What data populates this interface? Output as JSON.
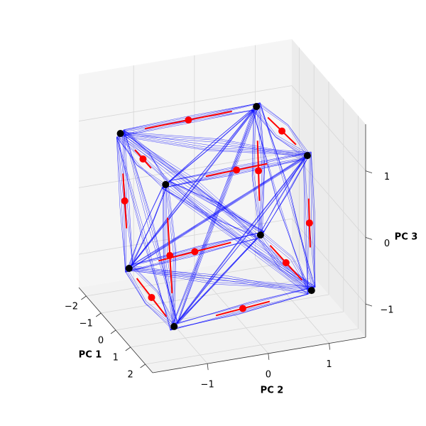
{
  "chart_data": {
    "type": "scatter3d",
    "xlabel": "PC 1",
    "ylabel": "PC 2",
    "zlabel": "PC 3",
    "xlim": [
      -2.5,
      2.5
    ],
    "ylim": [
      -1.9,
      1.6
    ],
    "zlim": [
      -1.5,
      1.7
    ],
    "xticks": [
      {
        "value": -2,
        "label": "−2"
      },
      {
        "value": -1,
        "label": "−1"
      },
      0,
      1,
      2
    ],
    "yticks": [
      {
        "value": -1,
        "label": "−1"
      },
      0,
      1
    ],
    "zticks": [
      {
        "value": -1,
        "label": "−1"
      },
      0,
      1
    ],
    "grid": true,
    "line_color": "#0000ff",
    "vertices": {
      "color": "#000000",
      "x": [
        -1.58,
        -0.98,
        1.15,
        0.33,
        -0.87,
        -0.91,
        0.73,
        0.86
      ],
      "y": [
        -1.44,
        0.65,
        0.97,
        -1.16,
        -1.47,
        0.7,
        1.14,
        -1.15
      ],
      "z": [
        0.98,
        1.22,
        0.98,
        0.66,
        -0.86,
        -0.7,
        -1.18,
        -1.34
      ]
    },
    "midpoints": {
      "color": "#ff0000",
      "x": [
        -1.28,
        0.085,
        0.74,
        -0.625,
        -0.89,
        -0.09,
        0.795,
        -0.005,
        -1.225,
        -0.945,
        0.94,
        0.595
      ],
      "y": [
        -0.395,
        0.81,
        -0.095,
        -1.3,
        -0.385,
        0.92,
        -0.005,
        -1.31,
        -1.455,
        0.675,
        1.055,
        -1.155
      ],
      "z": [
        1.1,
        1.1,
        0.82,
        0.82,
        -0.78,
        -0.94,
        -1.26,
        -1.1,
        0.06,
        0.26,
        -0.1,
        -0.34
      ],
      "errors": [
        0.7,
        0.6,
        0.5,
        0.35,
        0.6,
        0.55,
        0.45,
        0.6,
        0.4,
        0.45,
        0.4,
        0.55
      ]
    }
  }
}
